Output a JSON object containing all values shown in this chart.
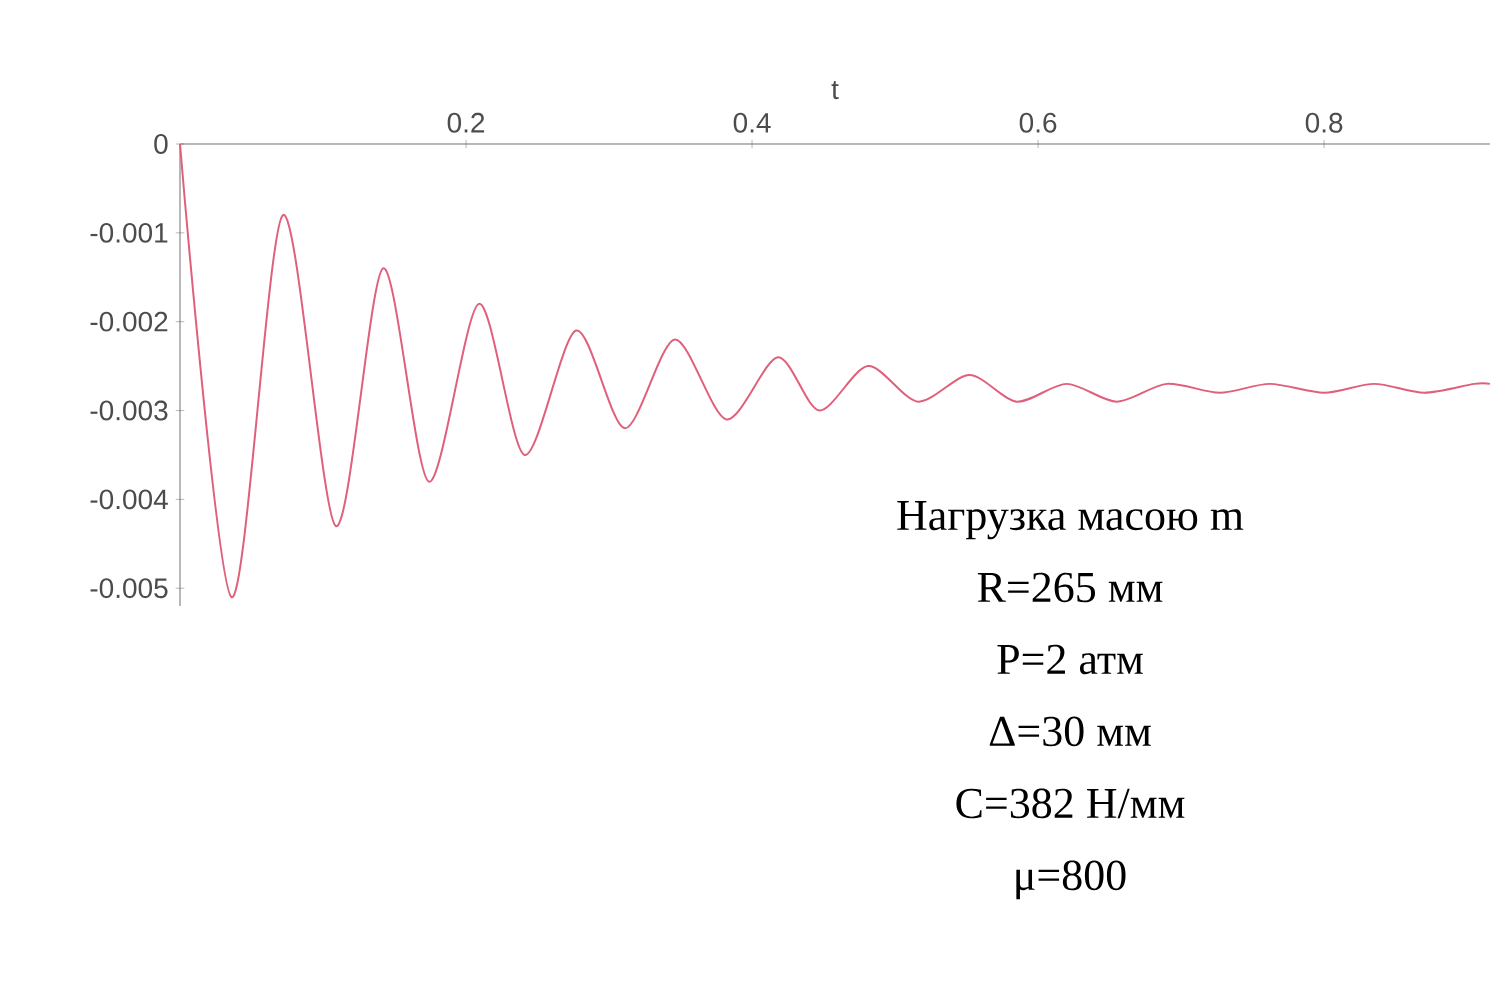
{
  "chart_data": {
    "type": "line",
    "xlabel": "t",
    "xlim": [
      0,
      0.916
    ],
    "ylim": [
      -0.0052,
      0
    ],
    "xticks": [
      0.2,
      0.4,
      0.6,
      0.8
    ],
    "yticks": [
      0,
      -0.001,
      -0.002,
      -0.003,
      -0.004,
      -0.005
    ],
    "marker": "none",
    "line_style": "solid",
    "series": [
      {
        "color": "#e0607a",
        "x": [
          0,
          0.036,
          0.072,
          0.109,
          0.142,
          0.174,
          0.209,
          0.241,
          0.277,
          0.311,
          0.346,
          0.382,
          0.418,
          0.447,
          0.481,
          0.516,
          0.552,
          0.585,
          0.62,
          0.655,
          0.69,
          0.727,
          0.762,
          0.8,
          0.835,
          0.87,
          0.905,
          0.916
        ],
        "values": [
          0,
          -0.0051,
          -0.0008,
          -0.0043,
          -0.0014,
          -0.0038,
          -0.0018,
          -0.0035,
          -0.0021,
          -0.0032,
          -0.0022,
          -0.0031,
          -0.0024,
          -0.003,
          -0.0025,
          -0.0029,
          -0.0026,
          -0.0029,
          -0.0027,
          -0.0029,
          -0.0027,
          -0.0028,
          -0.0027,
          -0.0028,
          -0.0027,
          -0.0028,
          -0.0027,
          -0.0027
        ]
      }
    ],
    "annotations": [
      "Нагрузка масою m",
      "R=265 мм",
      "P=2 атм",
      "Δ=30 мм",
      "C=382 Н/мм",
      "μ=800"
    ]
  }
}
